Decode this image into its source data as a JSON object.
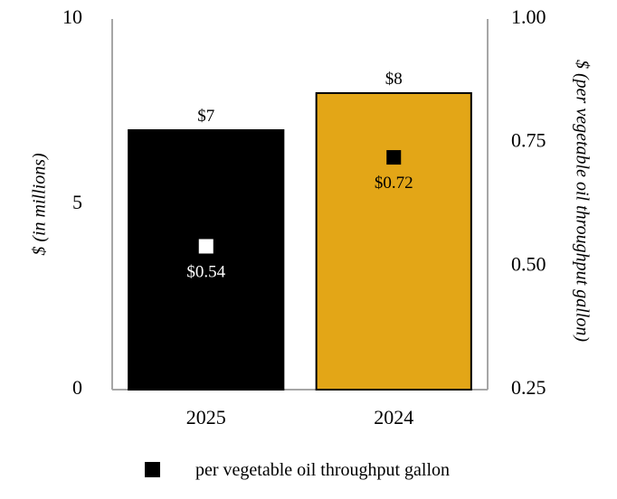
{
  "chart_data": {
    "type": "bar",
    "categories": [
      "2025",
      "2024"
    ],
    "series": [
      {
        "values": [
          7,
          8
        ],
        "value_labels": [
          "$7",
          "$8"
        ],
        "colors": [
          "#000000",
          "#e3a617"
        ],
        "axis": "left"
      },
      {
        "name": "per vegetable oil throughput gallon",
        "type": "scatter",
        "values": [
          0.54,
          0.72
        ],
        "value_labels": [
          "$0.54",
          "$0.72"
        ],
        "marker_colors": [
          "#ffffff",
          "#000000"
        ],
        "label_colors": [
          "#ffffff",
          "#000000"
        ],
        "axis": "right"
      }
    ],
    "ylabel": "$ (in millions)",
    "y2label": "$ (per vegetable oil throughput gallon)",
    "ylim": [
      0,
      10
    ],
    "y2lim": [
      0.25,
      1.0
    ],
    "yticks": [
      "0",
      "5",
      "10"
    ],
    "y2ticks": [
      "0.25",
      "0.50",
      "0.75",
      "1.00"
    ],
    "grid": false,
    "legend": {
      "position": "bottom",
      "entries": [
        "per vegetable oil throughput gallon"
      ]
    },
    "axis_color": "#a6a6a6"
  }
}
